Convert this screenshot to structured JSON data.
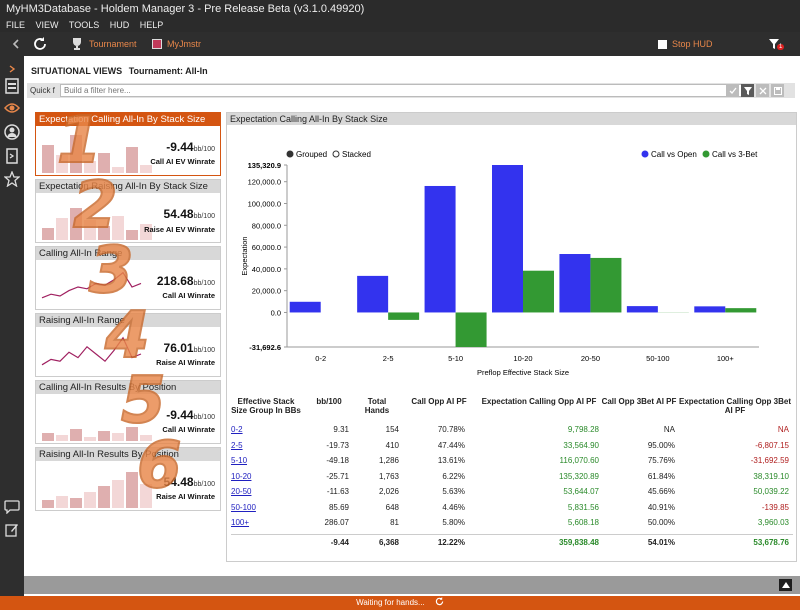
{
  "window": {
    "title": "MyHM3Database - Holdem Manager 3 - Pre Release Beta (v3.1.0.49920)"
  },
  "menu": [
    "FILE",
    "VIEW",
    "TOOLS",
    "HUD",
    "HELP"
  ],
  "toolbar": {
    "tournament_label": "Tournament",
    "player_label": "MyJmstr",
    "stop_hud_label": "Stop HUD",
    "filter_badge": "1"
  },
  "header": {
    "section": "SITUATIONAL VIEWS",
    "subtitle": "Tournament: All-In"
  },
  "quickfilter": {
    "label": "Quick filt",
    "placeholder": "Build a filter here..."
  },
  "cards": [
    {
      "title": "Expectation Calling All-In By Stack Size",
      "value": "-9.44",
      "unit": "bb/100",
      "label": "Call AI EV Winrate",
      "bars": [
        0.7,
        0.45,
        0.95,
        0.3,
        0.5,
        0.15,
        0.65,
        0.2
      ],
      "active": true
    },
    {
      "title": "Expectation Raising All-In By Stack Size",
      "value": "54.48",
      "unit": "bb/100",
      "label": "Raise AI EV Winrate",
      "bars": [
        0.3,
        0.55,
        0.8,
        0.5,
        0.35,
        0.6,
        0.25,
        0.4
      ],
      "active": false
    },
    {
      "title": "Calling All-In Range",
      "value": "218.68",
      "unit": "bb/100",
      "label": "Call AI Winrate",
      "line": [
        0.2,
        0.3,
        0.25,
        0.4,
        0.5,
        0.45,
        0.6,
        0.55,
        0.7,
        0.9,
        0.5,
        0.6
      ],
      "active": false
    },
    {
      "title": "Raising All-In Range",
      "value": "76.01",
      "unit": "bb/100",
      "label": "Raise AI Winrate",
      "line": [
        0.2,
        0.35,
        0.3,
        0.55,
        0.4,
        0.7,
        0.5,
        0.3,
        0.6,
        0.95,
        0.4,
        0.5
      ],
      "active": false
    },
    {
      "title": "Calling All-In Results By Position",
      "value": "-9.44",
      "unit": "bb/100",
      "label": "Call AI Winrate",
      "bars": [
        0.2,
        0.15,
        0.3,
        0.1,
        0.25,
        0.2,
        0.35,
        0.15
      ],
      "active": false
    },
    {
      "title": "Raising All-In Results By Position",
      "value": "54.48",
      "unit": "bb/100",
      "label": "Raise AI Winrate",
      "bars": [
        0.2,
        0.3,
        0.25,
        0.4,
        0.55,
        0.7,
        0.9,
        0.6
      ],
      "active": false
    }
  ],
  "overlay_numbers": [
    "1",
    "2",
    "3",
    "4",
    "5",
    "6"
  ],
  "chart_panel": {
    "title": "Expectation Calling All-In By Stack Size"
  },
  "chart_data": {
    "type": "bar",
    "categories": [
      "0-2",
      "2-5",
      "5-10",
      "10-20",
      "20-50",
      "50-100",
      "100+"
    ],
    "series": [
      {
        "name": "Call vs Open",
        "color": "#3333ee",
        "values": [
          9798.28,
          33564.9,
          116070.6,
          135320.89,
          53644.07,
          5831.56,
          5608.18
        ]
      },
      {
        "name": "Call vs 3-Bet",
        "color": "#339933",
        "values": [
          null,
          -6807.15,
          -31692.59,
          38319.1,
          50039.22,
          -139.85,
          3960.03
        ]
      }
    ],
    "xlabel": "Preflop Effective Stack Size",
    "ylabel": "Expectation",
    "ylim": [
      -31692.6,
      135320.9
    ],
    "yticks": [
      "135,320.9",
      "120,000.0",
      "100,000.0",
      "80,000.0",
      "60,000.0",
      "40,000.0",
      "20,000.0",
      "0.0",
      "-31,692.6"
    ],
    "ytick_values": [
      135320.9,
      120000,
      100000,
      80000,
      60000,
      40000,
      20000,
      0,
      -31692.6
    ],
    "toggle": {
      "grouped": "Grouped",
      "stacked": "Stacked"
    },
    "legend_position": "top-right"
  },
  "table": {
    "headers": [
      "Effective Stack Size Group In BBs",
      "bb/100",
      "Total Hands",
      "Call Opp AI PF",
      "Expectation Calling Opp AI PF",
      "Call Opp 3Bet AI PF",
      "Expectation Calling Opp 3Bet AI PF"
    ],
    "rows": [
      {
        "group": "0-2",
        "bb": "9.31",
        "hands": "154",
        "callopp": "70.78%",
        "exp": "9,798.28",
        "call3": "NA",
        "exp3": "NA",
        "exp3neg": true
      },
      {
        "group": "2-5",
        "bb": "-19.73",
        "hands": "410",
        "callopp": "47.44%",
        "exp": "33,564.90",
        "call3": "95.00%",
        "exp3": "-6,807.15",
        "exp3neg": true
      },
      {
        "group": "5-10",
        "bb": "-49.18",
        "hands": "1,286",
        "callopp": "13.61%",
        "exp": "116,070.60",
        "call3": "75.76%",
        "exp3": "-31,692.59",
        "exp3neg": true
      },
      {
        "group": "10-20",
        "bb": "-25.71",
        "hands": "1,763",
        "callopp": "6.22%",
        "exp": "135,320.89",
        "call3": "61.84%",
        "exp3": "38,319.10",
        "exp3neg": false
      },
      {
        "group": "20-50",
        "bb": "-11.63",
        "hands": "2,026",
        "callopp": "5.63%",
        "exp": "53,644.07",
        "call3": "45.66%",
        "exp3": "50,039.22",
        "exp3neg": false
      },
      {
        "group": "50-100",
        "bb": "85.69",
        "hands": "648",
        "callopp": "4.46%",
        "exp": "5,831.56",
        "call3": "40.91%",
        "exp3": "-139.85",
        "exp3neg": true
      },
      {
        "group": "100+",
        "bb": "286.07",
        "hands": "81",
        "callopp": "5.80%",
        "exp": "5,608.18",
        "call3": "50.00%",
        "exp3": "3,960.03",
        "exp3neg": false
      }
    ],
    "totals": {
      "bb": "-9.44",
      "hands": "6,368",
      "callopp": "12.22%",
      "exp": "359,838.48",
      "call3": "54.01%",
      "exp3": "53,678.76"
    }
  },
  "status": {
    "text": "Waiting for hands..."
  }
}
